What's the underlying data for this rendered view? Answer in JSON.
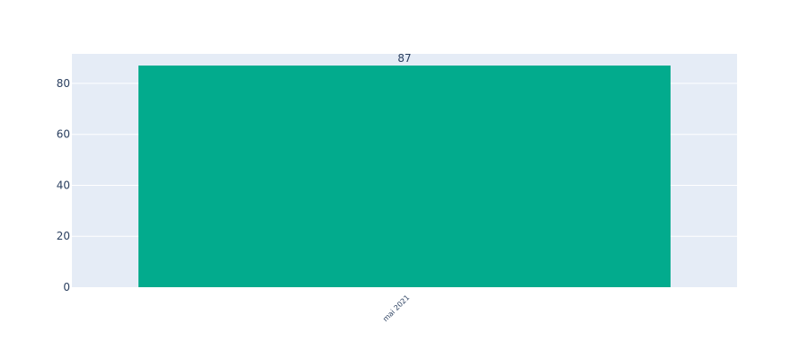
{
  "chart_data": {
    "type": "bar",
    "categories": [
      "mai 2021"
    ],
    "values": [
      87
    ],
    "data_labels": [
      "87"
    ],
    "title": "",
    "xlabel": "",
    "ylabel": "",
    "ylim": [
      0,
      91.6
    ],
    "yticks": [
      0,
      20,
      40,
      60,
      80
    ],
    "ytick_labels": [
      "0",
      "20",
      "40",
      "60",
      "80"
    ],
    "grid": true,
    "legend": "none",
    "x_tick_rotation_deg": -45,
    "colors": {
      "bar": "#02ab8d",
      "plot_background": "#e5ecf6",
      "gridline": "#ffffff",
      "text": "#2a3f5f"
    }
  }
}
